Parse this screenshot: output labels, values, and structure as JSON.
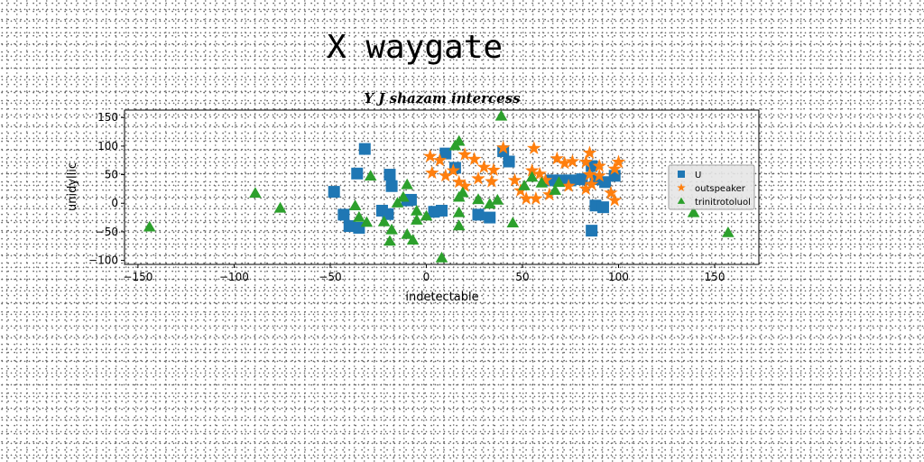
{
  "figure": {
    "suptitle": "X waygate"
  },
  "chart_data": {
    "type": "scatter",
    "title": "Y J shazam intercess",
    "xlabel": "indetectable",
    "ylabel": "unidyllic",
    "xlim": [
      -157,
      173
    ],
    "ylim": [
      -107,
      163
    ],
    "xticks": [
      -150,
      -100,
      -50,
      0,
      50,
      100,
      150
    ],
    "yticks": [
      -100,
      -50,
      0,
      50,
      100,
      150
    ],
    "xtick_labels": [
      "−150",
      "−100",
      "−50",
      "0",
      "50",
      "100",
      "150"
    ],
    "ytick_labels": [
      "−100",
      "−50",
      "0",
      "50",
      "100",
      "150"
    ],
    "grid": false,
    "legend_position": "right",
    "series": [
      {
        "name": "U",
        "marker": "square",
        "color": "#1f77b4",
        "points": [
          [
            -32,
            95
          ],
          [
            40,
            91
          ],
          [
            10,
            87
          ],
          [
            43,
            73
          ],
          [
            15,
            62
          ],
          [
            -36,
            52
          ],
          [
            -19,
            50
          ],
          [
            -48,
            20
          ],
          [
            -18,
            30
          ],
          [
            -43,
            -20
          ],
          [
            -40,
            -40
          ],
          [
            -35,
            -43
          ],
          [
            -23,
            -13
          ],
          [
            -20,
            -19
          ],
          [
            -10,
            5
          ],
          [
            -8,
            6
          ],
          [
            4,
            -15
          ],
          [
            8,
            -13
          ],
          [
            27,
            -20
          ],
          [
            33,
            -25
          ],
          [
            65,
            40
          ],
          [
            70,
            40
          ],
          [
            75,
            40
          ],
          [
            81,
            42
          ],
          [
            86,
            65
          ],
          [
            88,
            42
          ],
          [
            93,
            37
          ],
          [
            98,
            48
          ],
          [
            88,
            -4
          ],
          [
            92,
            -7
          ],
          [
            86,
            -48
          ]
        ]
      },
      {
        "name": "outspeaker",
        "marker": "star",
        "color": "#ff7f0e",
        "points": [
          [
            40,
            97
          ],
          [
            56,
            96
          ],
          [
            20,
            85
          ],
          [
            2,
            82
          ],
          [
            7,
            75
          ],
          [
            25,
            77
          ],
          [
            30,
            63
          ],
          [
            14,
            57
          ],
          [
            35,
            58
          ],
          [
            3,
            53
          ],
          [
            10,
            48
          ],
          [
            55,
            57
          ],
          [
            59,
            51
          ],
          [
            68,
            78
          ],
          [
            72,
            70
          ],
          [
            76,
            73
          ],
          [
            85,
            88
          ],
          [
            83,
            72
          ],
          [
            90,
            65
          ],
          [
            85,
            50
          ],
          [
            90,
            48
          ],
          [
            100,
            72
          ],
          [
            98,
            60
          ],
          [
            17,
            37
          ],
          [
            20,
            30
          ],
          [
            27,
            43
          ],
          [
            34,
            38
          ],
          [
            46,
            40
          ],
          [
            49,
            22
          ],
          [
            52,
            8
          ],
          [
            57,
            8
          ],
          [
            64,
            15
          ],
          [
            62,
            40
          ],
          [
            74,
            30
          ],
          [
            83,
            25
          ],
          [
            86,
            33
          ],
          [
            96,
            18
          ],
          [
            98,
            5
          ]
        ]
      },
      {
        "name": "trinitrotoluol",
        "marker": "triangle",
        "color": "#2ca02c",
        "points": [
          [
            39,
            152
          ],
          [
            17,
            108
          ],
          [
            15,
            100
          ],
          [
            -144,
            -42
          ],
          [
            -89,
            17
          ],
          [
            -76,
            -9
          ],
          [
            -29,
            47
          ],
          [
            -10,
            32
          ],
          [
            -12,
            10
          ],
          [
            -37,
            -5
          ],
          [
            -35,
            -25
          ],
          [
            -31,
            -34
          ],
          [
            -22,
            -33
          ],
          [
            -18,
            -47
          ],
          [
            -19,
            -67
          ],
          [
            -10,
            -55
          ],
          [
            -7,
            -65
          ],
          [
            -15,
            0
          ],
          [
            -5,
            -30
          ],
          [
            0,
            -23
          ],
          [
            -5,
            -14
          ],
          [
            8,
            -96
          ],
          [
            17,
            -40
          ],
          [
            17,
            -17
          ],
          [
            17,
            10
          ],
          [
            19,
            18
          ],
          [
            27,
            6
          ],
          [
            33,
            -2
          ],
          [
            37,
            5
          ],
          [
            45,
            -35
          ],
          [
            51,
            30
          ],
          [
            55,
            45
          ],
          [
            60,
            35
          ],
          [
            67,
            22
          ],
          [
            69,
            36
          ],
          [
            139,
            -17
          ],
          [
            157,
            -52
          ]
        ]
      }
    ]
  }
}
